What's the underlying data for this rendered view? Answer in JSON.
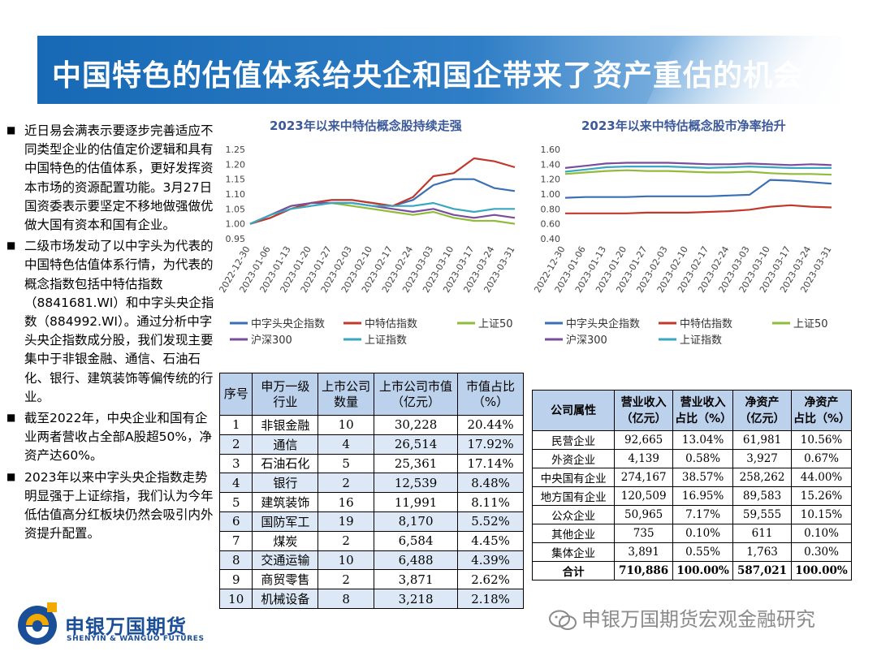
{
  "title": "中国特色的估值体系给央企和国企带来了资产重估的机会",
  "bullets": [
    "近日易会满表示要逐步完善适应不同类型企业的估值定价逻辑和具有中国特色的估值体系，更好发挥资本市场的资源配置功能。3月27日国资委表示要坚定不移地做强做优做大国有资本和国有企业。",
    "二级市场发动了以中字头为代表的中国特色估值体系行情，为代表的概念指数包括中特估指数（8841681.WI）和中字头央企指数（884992.WI）。通过分析中字头央企指数成分股，我们发现主要集中于非银金融、通信、石油石化、银行、建筑装饰等偏传统的行业。",
    "截至2022年，中央企业和国有企业两者营收占全部A股超50%，净资产达60%。",
    "2023年以来中字头央企指数走势明显强于上证综指，我们认为今年低估值高分红板块仍然会吸引内外资提升配置。"
  ],
  "chart_data": [
    {
      "type": "line",
      "title": "2023年以来中特估概念股持续走强",
      "x": [
        "2022-12-30",
        "2023-01-06",
        "2023-01-13",
        "2023-01-20",
        "2023-01-27",
        "2023-02-03",
        "2023-02-10",
        "2023-02-17",
        "2023-02-24",
        "2023-03-03",
        "2023-03-10",
        "2023-03-17",
        "2023-03-24",
        "2023-03-31"
      ],
      "ylim": [
        0.95,
        1.25
      ],
      "yticks": [
        "0.95",
        "1.00",
        "1.05",
        "1.10",
        "1.15",
        "1.20",
        "1.25"
      ],
      "series": [
        {
          "name": "中字头央企指数",
          "color": "#3a6fb5",
          "values": [
            1.0,
            1.02,
            1.05,
            1.07,
            1.08,
            1.08,
            1.07,
            1.06,
            1.08,
            1.13,
            1.15,
            1.15,
            1.12,
            1.11
          ]
        },
        {
          "name": "中特估指数",
          "color": "#c0392b",
          "values": [
            1.0,
            1.02,
            1.05,
            1.07,
            1.08,
            1.08,
            1.07,
            1.06,
            1.09,
            1.16,
            1.17,
            1.22,
            1.21,
            1.19
          ]
        },
        {
          "name": "上证50",
          "color": "#8fbc3a",
          "values": [
            1.0,
            1.03,
            1.06,
            1.07,
            1.07,
            1.06,
            1.05,
            1.04,
            1.03,
            1.04,
            1.02,
            1.01,
            1.01,
            1.0
          ]
        },
        {
          "name": "沪深300",
          "color": "#7a4c9e",
          "values": [
            1.0,
            1.03,
            1.06,
            1.07,
            1.07,
            1.07,
            1.06,
            1.05,
            1.04,
            1.05,
            1.03,
            1.02,
            1.03,
            1.02
          ]
        },
        {
          "name": "上证指数",
          "color": "#3aa6c0",
          "values": [
            1.0,
            1.03,
            1.05,
            1.06,
            1.07,
            1.07,
            1.06,
            1.06,
            1.06,
            1.07,
            1.05,
            1.04,
            1.05,
            1.05
          ]
        }
      ]
    },
    {
      "type": "line",
      "title": "2023年以来中特估概念股市净率抬升",
      "x": [
        "2022-12-30",
        "2023-01-06",
        "2023-01-13",
        "2023-01-20",
        "2023-01-27",
        "2023-02-03",
        "2023-02-10",
        "2023-02-17",
        "2023-02-24",
        "2023-03-03",
        "2023-03-10",
        "2023-03-17",
        "2023-03-24",
        "2023-03-31"
      ],
      "ylim": [
        0.4,
        1.6
      ],
      "yticks": [
        "0.40",
        "0.60",
        "0.80",
        "1.00",
        "1.20",
        "1.40",
        "1.60"
      ],
      "series": [
        {
          "name": "中字头央企指数",
          "color": "#3a6fb5",
          "values": [
            0.95,
            0.96,
            0.96,
            0.96,
            0.97,
            0.97,
            0.97,
            0.97,
            0.98,
            0.99,
            1.19,
            1.18,
            1.16,
            1.14
          ]
        },
        {
          "name": "中特估指数",
          "color": "#c0392b",
          "values": [
            0.74,
            0.74,
            0.74,
            0.74,
            0.75,
            0.75,
            0.75,
            0.76,
            0.77,
            0.79,
            0.83,
            0.85,
            0.83,
            0.82
          ]
        },
        {
          "name": "上证50",
          "color": "#8fbc3a",
          "values": [
            1.27,
            1.29,
            1.31,
            1.32,
            1.31,
            1.31,
            1.3,
            1.29,
            1.29,
            1.3,
            1.28,
            1.27,
            1.27,
            1.26
          ]
        },
        {
          "name": "沪深300",
          "color": "#7a4c9e",
          "values": [
            1.35,
            1.38,
            1.41,
            1.42,
            1.42,
            1.42,
            1.41,
            1.4,
            1.4,
            1.41,
            1.4,
            1.39,
            1.4,
            1.39
          ]
        },
        {
          "name": "上证指数",
          "color": "#3aa6c0",
          "values": [
            1.3,
            1.33,
            1.36,
            1.37,
            1.37,
            1.37,
            1.36,
            1.35,
            1.36,
            1.37,
            1.36,
            1.35,
            1.35,
            1.35
          ]
        }
      ]
    },
    {
      "type": "table",
      "headers": [
        "序号",
        "申万一级行业",
        "上市公司数量",
        "上市公司市值（亿元）",
        "市值占比（%）"
      ],
      "rows": [
        [
          "1",
          "非银金融",
          "10",
          "30,228",
          "20.44%"
        ],
        [
          "2",
          "通信",
          "4",
          "26,514",
          "17.92%"
        ],
        [
          "3",
          "石油石化",
          "5",
          "25,361",
          "17.14%"
        ],
        [
          "4",
          "银行",
          "2",
          "12,539",
          "8.48%"
        ],
        [
          "5",
          "建筑装饰",
          "16",
          "11,991",
          "8.11%"
        ],
        [
          "6",
          "国防军工",
          "19",
          "8,170",
          "5.52%"
        ],
        [
          "7",
          "煤炭",
          "2",
          "6,584",
          "4.45%"
        ],
        [
          "8",
          "交通运输",
          "10",
          "6,488",
          "4.39%"
        ],
        [
          "9",
          "商贸零售",
          "2",
          "3,871",
          "2.62%"
        ],
        [
          "10",
          "机械设备",
          "8",
          "3,218",
          "2.18%"
        ]
      ]
    },
    {
      "type": "table",
      "headers": [
        "公司属性",
        "营业收入（亿元）",
        "营业收入占比（%）",
        "净资产（亿元）",
        "净资产占比（%）"
      ],
      "rows": [
        [
          "民营企业",
          "92,665",
          "13.04%",
          "61,981",
          "10.56%"
        ],
        [
          "外资企业",
          "4,139",
          "0.58%",
          "3,927",
          "0.67%"
        ],
        [
          "中央国有企业",
          "274,167",
          "38.57%",
          "258,262",
          "44.00%"
        ],
        [
          "地方国有企业",
          "120,509",
          "16.95%",
          "89,583",
          "15.26%"
        ],
        [
          "公众企业",
          "50,965",
          "7.17%",
          "59,555",
          "10.15%"
        ],
        [
          "其他企业",
          "735",
          "0.10%",
          "611",
          "0.10%"
        ],
        [
          "集体企业",
          "3,891",
          "0.55%",
          "1,763",
          "0.30%"
        ],
        [
          "合计",
          "710,886",
          "100.00%",
          "587,021",
          "100.00%"
        ]
      ]
    }
  ],
  "t1": {
    "h_idx": "序号",
    "h_ind_1": "申万一级",
    "h_ind_2": "行业",
    "h_cnt_1": "上市公司",
    "h_cnt_2": "数量",
    "h_cap_1": "上市公司市值",
    "h_cap_2": "（亿元）",
    "h_pct_1": "市值占比",
    "h_pct_2": "（%）"
  },
  "t2": {
    "h_attr": "公司属性",
    "h_rev_1": "营业收入",
    "h_rev_2": "（亿元）",
    "h_revp_1": "营业收入",
    "h_revp_2": "占比（%）",
    "h_na_1": "净资产",
    "h_na_2": "（亿元）",
    "h_nap_1": "净资产",
    "h_nap_2": "占比（%）"
  },
  "logo": {
    "cn": "申银万国期货",
    "en": "SHENYIN & WANGUO FUTURES"
  },
  "watermark": "申银万国期货宏观金融研究",
  "colors": {
    "brand": "#1769b5",
    "chart_title": "#3c5a9a",
    "table_header": "#bcd2ec",
    "table_band": "#dce8f5"
  }
}
